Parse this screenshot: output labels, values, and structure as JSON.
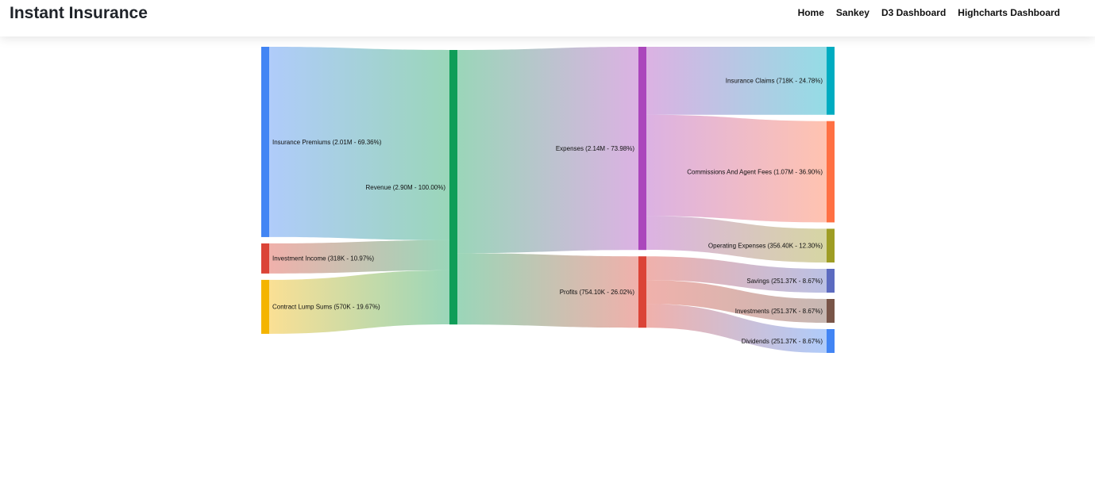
{
  "app": {
    "brand": "Instant Insurance",
    "nav": [
      {
        "label": "Home"
      },
      {
        "label": "Sankey"
      },
      {
        "label": "D3 Dashboard"
      },
      {
        "label": "Highcharts Dashboard"
      }
    ]
  },
  "chart_data": {
    "type": "sankey",
    "nodes": [
      {
        "id": "premiums",
        "label": "Insurance Premiums (2.01M - 69.36%)",
        "value": 2.01,
        "color": "#4285f4",
        "column": 0
      },
      {
        "id": "investment_income",
        "label": "Investment Income (318K - 10.97%)",
        "value": 0.318,
        "color": "#db4437",
        "column": 0
      },
      {
        "id": "lump_sums",
        "label": "Contract Lump Sums (570K - 19.67%)",
        "value": 0.57,
        "color": "#f4b400",
        "column": 0
      },
      {
        "id": "revenue",
        "label": "Revenue (2.90M - 100.00%)",
        "value": 2.9,
        "color": "#0f9d58",
        "column": 1
      },
      {
        "id": "expenses",
        "label": "Expenses (2.14M - 73.98%)",
        "value": 2.1464,
        "color": "#ab47bc",
        "column": 2
      },
      {
        "id": "profits",
        "label": "Profits (754.10K - 26.02%)",
        "value": 0.7541,
        "color": "#db4437",
        "column": 2
      },
      {
        "id": "claims",
        "label": "Insurance Claims (718K - 24.78%)",
        "value": 0.718,
        "color": "#00acc1",
        "column": 3
      },
      {
        "id": "commissions",
        "label": "Commissions And Agent Fees (1.07M - 36.90%)",
        "value": 1.07,
        "color": "#ff7043",
        "column": 3
      },
      {
        "id": "operating",
        "label": "Operating Expenses (356.40K - 12.30%)",
        "value": 0.3564,
        "color": "#9e9d24",
        "column": 3
      },
      {
        "id": "savings",
        "label": "Savings (251.37K - 8.67%)",
        "value": 0.25137,
        "color": "#5c6bc0",
        "column": 3
      },
      {
        "id": "investments",
        "label": "Investments (251.37K - 8.67%)",
        "value": 0.25137,
        "color": "#795548",
        "column": 3
      },
      {
        "id": "dividends",
        "label": "Dividends (251.37K - 8.67%)",
        "value": 0.25137,
        "color": "#4285f4",
        "column": 3
      }
    ],
    "links": [
      {
        "source": "premiums",
        "target": "revenue",
        "value": 2.01
      },
      {
        "source": "investment_income",
        "target": "revenue",
        "value": 0.318
      },
      {
        "source": "lump_sums",
        "target": "revenue",
        "value": 0.57
      },
      {
        "source": "revenue",
        "target": "expenses",
        "value": 2.1464
      },
      {
        "source": "revenue",
        "target": "profits",
        "value": 0.7541
      },
      {
        "source": "expenses",
        "target": "claims",
        "value": 0.718
      },
      {
        "source": "expenses",
        "target": "commissions",
        "value": 1.07
      },
      {
        "source": "expenses",
        "target": "operating",
        "value": 0.3564
      },
      {
        "source": "profits",
        "target": "savings",
        "value": 0.25137
      },
      {
        "source": "profits",
        "target": "investments",
        "value": 0.25137
      },
      {
        "source": "profits",
        "target": "dividends",
        "value": 0.25137
      }
    ]
  }
}
